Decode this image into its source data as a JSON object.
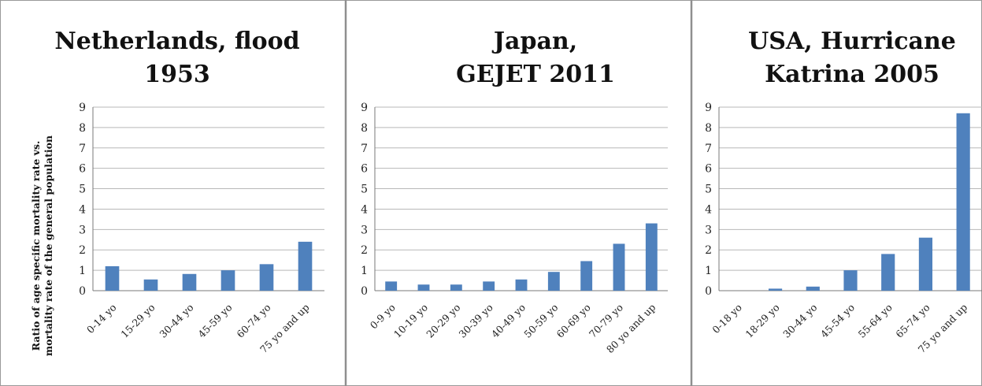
{
  "y_axis_label_lines": [
    "Ratio of age specific mortality rate vs.",
    "mortality rate of the general population"
  ],
  "chart_data": [
    {
      "type": "bar",
      "title_lines": [
        "Netherlands, flood",
        "1953"
      ],
      "categories": [
        "0-14 yo",
        "15-29 yo",
        "30-44 yo",
        "45-59 yo",
        "60-74 yo",
        "75 yo and up"
      ],
      "values": [
        1.2,
        0.55,
        0.82,
        1.0,
        1.3,
        2.4
      ],
      "ylim": [
        0,
        9
      ],
      "yticks": [
        "0",
        "1",
        "2",
        "3",
        "4",
        "5",
        "6",
        "7",
        "8",
        "9"
      ],
      "grid": true,
      "bar_color": "#4f81bd"
    },
    {
      "type": "bar",
      "title_lines": [
        "Japan,",
        "GEJET 2011"
      ],
      "categories": [
        "0-9 yo",
        "10-19 yo",
        "20-29 yo",
        "30-39 yo",
        "40-49 yo",
        "50-59 yo",
        "60-69 yo",
        "70-79 yo",
        "80 yo and up"
      ],
      "values": [
        0.45,
        0.3,
        0.3,
        0.45,
        0.55,
        0.92,
        1.45,
        2.3,
        3.3
      ],
      "ylim": [
        0,
        9
      ],
      "yticks": [
        "0",
        "1",
        "2",
        "3",
        "4",
        "5",
        "6",
        "7",
        "8",
        "9"
      ],
      "grid": true,
      "bar_color": "#4f81bd"
    },
    {
      "type": "bar",
      "title_lines": [
        "USA, Hurricane",
        "Katrina 2005"
      ],
      "categories": [
        "0-18 yo",
        "18-29 yo",
        "30-44 yo",
        "45-54 yo",
        "55-64 yo",
        "65-74 yo",
        "75 yo and up"
      ],
      "values": [
        0.0,
        0.1,
        0.2,
        1.0,
        1.8,
        2.6,
        8.7
      ],
      "ylim": [
        0,
        9
      ],
      "yticks": [
        "0",
        "1",
        "2",
        "3",
        "4",
        "5",
        "6",
        "7",
        "8",
        "9"
      ],
      "grid": true,
      "bar_color": "#4f81bd"
    }
  ]
}
